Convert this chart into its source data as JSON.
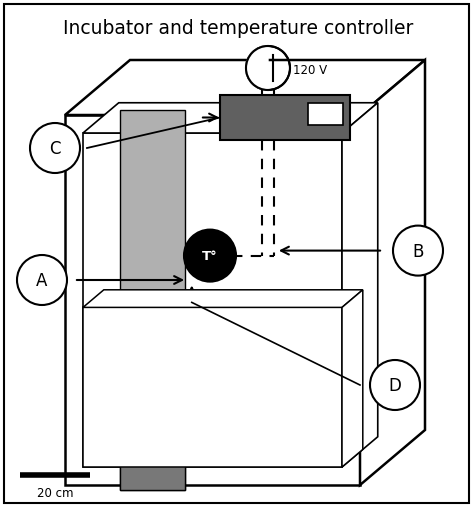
{
  "title": "Incubator and temperature controller",
  "bg_color": "#ffffff",
  "border_color": "#000000",
  "box_gray_light": "#b0b0b0",
  "box_gray_dark": "#787878",
  "controller_gray": "#606060",
  "label_A": "A",
  "label_B": "B",
  "label_C": "C",
  "label_D": "D",
  "label_120V": "120 V",
  "label_T": "T°",
  "scale_label": "20 cm",
  "figsize": [
    4.74,
    5.08
  ],
  "dpi": 100
}
